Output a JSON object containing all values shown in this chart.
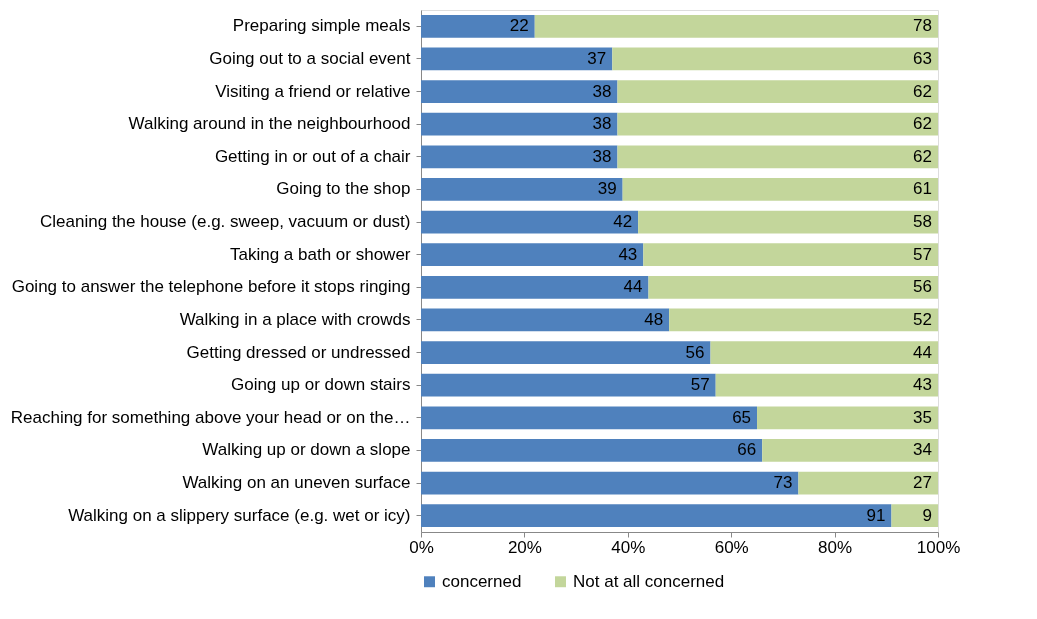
{
  "chart_data": {
    "type": "bar",
    "orientation": "horizontal",
    "stacked": true,
    "data_labels": true,
    "legend": "bottom",
    "grid": false,
    "categories": [
      "Preparing simple meals",
      "Going out to a social event",
      "Visiting a friend or relative",
      "Walking around in the  neighbourhood",
      "Getting in or out of a chair",
      "Going to the shop",
      "Cleaning the house (e.g. sweep, vacuum or dust)",
      "Taking a bath or shower",
      "Going to answer the telephone before it stops ringing",
      "Walking in a place with crowds",
      "Getting dressed or undressed",
      "Going up or down stairs",
      "Reaching for something above your head or on the…",
      "Walking up or down a slope",
      "Walking on an uneven surface",
      "Walking on a slippery surface (e.g. wet or icy)"
    ],
    "series": [
      {
        "name": "concerned",
        "color": "#4f81bd",
        "values": [
          22,
          37,
          38,
          38,
          38,
          39,
          42,
          43,
          44,
          48,
          56,
          57,
          65,
          66,
          73,
          91
        ]
      },
      {
        "name": "Not at all  concerned",
        "color": "#c3d69b",
        "values": [
          78,
          63,
          62,
          62,
          62,
          61,
          58,
          57,
          56,
          52,
          44,
          43,
          35,
          34,
          27,
          9
        ]
      }
    ],
    "xlim": [
      0,
      100
    ],
    "xticks": [
      {
        "value": 0,
        "label": "0%"
      },
      {
        "value": 20,
        "label": "20%"
      },
      {
        "value": 40,
        "label": "40%"
      },
      {
        "value": 60,
        "label": "60%"
      },
      {
        "value": 80,
        "label": "80%"
      },
      {
        "value": 100,
        "label": "100%"
      }
    ]
  }
}
